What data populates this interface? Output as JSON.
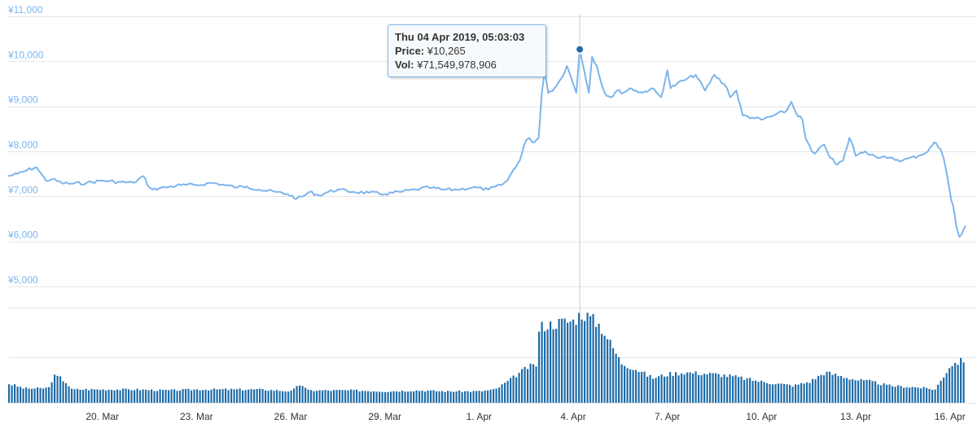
{
  "colors": {
    "line": "#7cb5ec",
    "volume": "#1f6ca8",
    "grid": "#e6e6e6",
    "ytick": "#7cb5ec",
    "xtick": "#333333",
    "crosshair": "#cccccc",
    "marker": "#1f6ca8"
  },
  "tooltip": {
    "date": "Thu 04 Apr 2019, 05:03:03",
    "price_label": "Price:",
    "price_value": "¥10,265",
    "vol_label": "Vol:",
    "vol_value": "¥71,549,978,906"
  },
  "chart_data": [
    {
      "type": "line",
      "title": "",
      "x_unit": "days since start (0 = 17 Mar)",
      "xlim": [
        0.0,
        30.5
      ],
      "ylim": [
        5000,
        11000
      ],
      "yticks": [
        "¥5,000",
        "¥6,000",
        "¥7,000",
        "¥8,000",
        "¥9,000",
        "¥10,000",
        "¥11,000"
      ],
      "ytick_values": [
        5000,
        6000,
        7000,
        8000,
        9000,
        10000,
        11000
      ],
      "xticks": [
        "20. Mar",
        "23. Mar",
        "26. Mar",
        "29. Mar",
        "1. Apr",
        "4. Apr",
        "7. Apr",
        "10. Apr",
        "13. Apr",
        "16. Apr"
      ],
      "xtick_values": [
        3,
        6,
        9,
        12,
        15,
        18,
        21,
        24,
        27,
        30
      ],
      "grid": true,
      "crosshair_x": 18.21,
      "highlight": {
        "x": 18.21,
        "y": 10265
      },
      "series": [
        {
          "x": [
            0.0,
            0.3,
            0.6,
            0.9,
            1.0,
            1.2,
            1.4,
            1.7,
            2.0,
            2.5,
            3.0,
            3.5,
            4.0,
            4.3,
            4.5,
            4.6,
            4.8,
            5.0,
            5.5,
            6.0,
            6.5,
            6.9,
            7.3,
            7.6,
            8.0,
            8.5,
            8.9,
            9.2,
            9.4,
            9.6,
            9.9,
            10.2,
            10.5,
            11.0,
            11.5,
            12.0,
            12.5,
            13.0,
            13.4,
            13.8,
            14.3,
            14.8,
            15.3,
            15.7,
            15.9,
            16.1,
            16.3,
            16.5,
            16.6,
            16.7,
            16.9,
            17.0,
            17.1,
            17.2,
            17.4,
            17.6,
            17.8,
            18.0,
            18.1,
            18.21,
            18.35,
            18.5,
            18.6,
            18.75,
            18.9,
            19.0,
            19.2,
            19.4,
            19.6,
            19.8,
            20.0,
            20.2,
            20.5,
            20.8,
            21.0,
            21.1,
            21.3,
            21.6,
            21.9,
            22.2,
            22.5,
            22.8,
            22.9,
            23.0,
            23.2,
            23.4,
            23.7,
            24.0,
            24.4,
            24.8,
            24.95,
            25.1,
            25.3,
            25.4,
            25.6,
            25.7,
            26.0,
            26.2,
            26.4,
            26.6,
            26.8,
            26.9,
            27.0,
            27.3,
            27.6,
            28.0,
            28.5,
            29.0,
            29.3,
            29.5,
            29.7,
            29.8,
            29.9,
            30.0,
            30.05,
            30.1,
            30.15,
            30.2,
            30.3,
            30.5
          ],
          "y": [
            7450,
            7500,
            7580,
            7650,
            7550,
            7350,
            7380,
            7300,
            7280,
            7300,
            7350,
            7320,
            7300,
            7450,
            7200,
            7150,
            7180,
            7200,
            7250,
            7250,
            7300,
            7250,
            7200,
            7220,
            7150,
            7100,
            7050,
            6950,
            7000,
            7100,
            7020,
            7100,
            7150,
            7100,
            7080,
            7050,
            7100,
            7150,
            7200,
            7150,
            7150,
            7200,
            7150,
            7250,
            7350,
            7600,
            7800,
            8250,
            8300,
            8200,
            8300,
            9300,
            9800,
            9300,
            9400,
            9600,
            9900,
            9500,
            9300,
            10265,
            9800,
            9300,
            10100,
            9900,
            9500,
            9300,
            9200,
            9350,
            9300,
            9400,
            9350,
            9300,
            9400,
            9200,
            9800,
            9400,
            9500,
            9600,
            9700,
            9350,
            9700,
            9500,
            9400,
            9200,
            9350,
            8800,
            8750,
            8700,
            8800,
            8900,
            9100,
            8850,
            8700,
            8300,
            8000,
            7950,
            8150,
            7850,
            7700,
            7800,
            8300,
            8150,
            7900,
            8000,
            7900,
            7850,
            7800,
            7900,
            8000,
            8200,
            8050,
            7850,
            7500,
            7100,
            6900,
            6800,
            6600,
            6350,
            6100,
            6350
          ]
        }
      ]
    },
    {
      "type": "bar",
      "title": "",
      "ylim": [
        0,
        1
      ],
      "note": "volume panel, relative heights",
      "series": [
        {
          "x": [
            0.0,
            0.5,
            1.0,
            1.3,
            1.4,
            1.6,
            1.8,
            2.0,
            3.0,
            4.0,
            5.0,
            6.0,
            7.0,
            8.0,
            9.0,
            9.3,
            9.5,
            10.0,
            11.0,
            12.0,
            13.0,
            14.0,
            15.0,
            15.5,
            16.0,
            16.2,
            16.5,
            16.8,
            16.9,
            17.2,
            17.6,
            18.0,
            18.21,
            18.5,
            18.8,
            19.0,
            19.2,
            19.5,
            20.0,
            20.5,
            21.0,
            21.5,
            22.0,
            22.5,
            23.0,
            23.5,
            24.0,
            24.5,
            25.0,
            25.5,
            26.0,
            26.5,
            27.0,
            27.5,
            28.0,
            28.5,
            29.0,
            29.5,
            29.7,
            30.0,
            30.5
          ],
          "values": [
            0.2,
            0.15,
            0.15,
            0.16,
            0.28,
            0.27,
            0.22,
            0.14,
            0.14,
            0.14,
            0.13,
            0.14,
            0.14,
            0.14,
            0.12,
            0.2,
            0.13,
            0.13,
            0.13,
            0.12,
            0.13,
            0.12,
            0.12,
            0.14,
            0.25,
            0.3,
            0.37,
            0.4,
            0.8,
            0.82,
            0.85,
            0.86,
            0.94,
            0.9,
            0.82,
            0.72,
            0.6,
            0.42,
            0.35,
            0.26,
            0.3,
            0.32,
            0.31,
            0.3,
            0.28,
            0.25,
            0.22,
            0.2,
            0.18,
            0.22,
            0.32,
            0.28,
            0.24,
            0.22,
            0.18,
            0.17,
            0.16,
            0.14,
            0.24,
            0.4,
            0.46
          ]
        }
      ]
    }
  ]
}
